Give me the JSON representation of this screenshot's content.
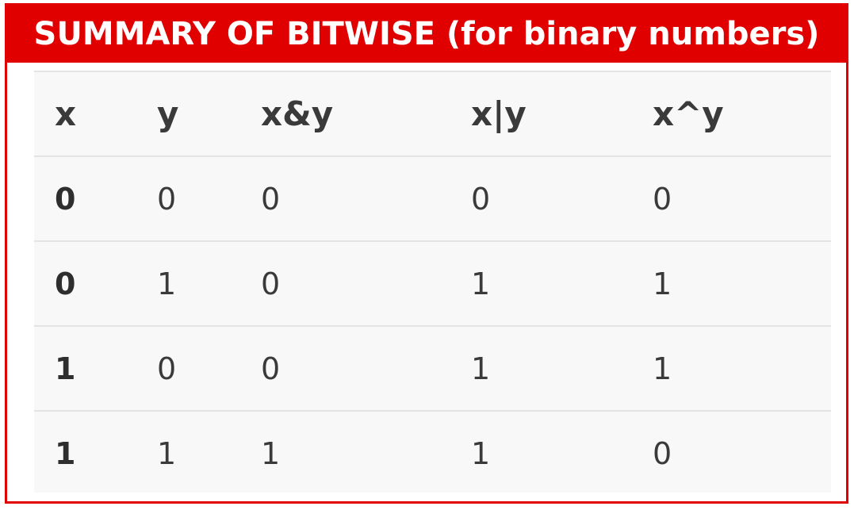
{
  "title": "SUMMARY OF BITWISE (for binary numbers)",
  "colors": {
    "accent": "#e00000",
    "title_text": "#ffffff",
    "table_bg": "#f8f8f8",
    "row_separator": "#e4e4e4",
    "text": "#3a3a3a"
  },
  "table": {
    "headers": [
      "x",
      "y",
      "x&y",
      "x|y",
      "x^y"
    ],
    "rows": [
      [
        "0",
        "0",
        "0",
        "0",
        "0"
      ],
      [
        "0",
        "1",
        "0",
        "1",
        "1"
      ],
      [
        "1",
        "0",
        "0",
        "1",
        "1"
      ],
      [
        "1",
        "1",
        "1",
        "1",
        "0"
      ]
    ]
  }
}
